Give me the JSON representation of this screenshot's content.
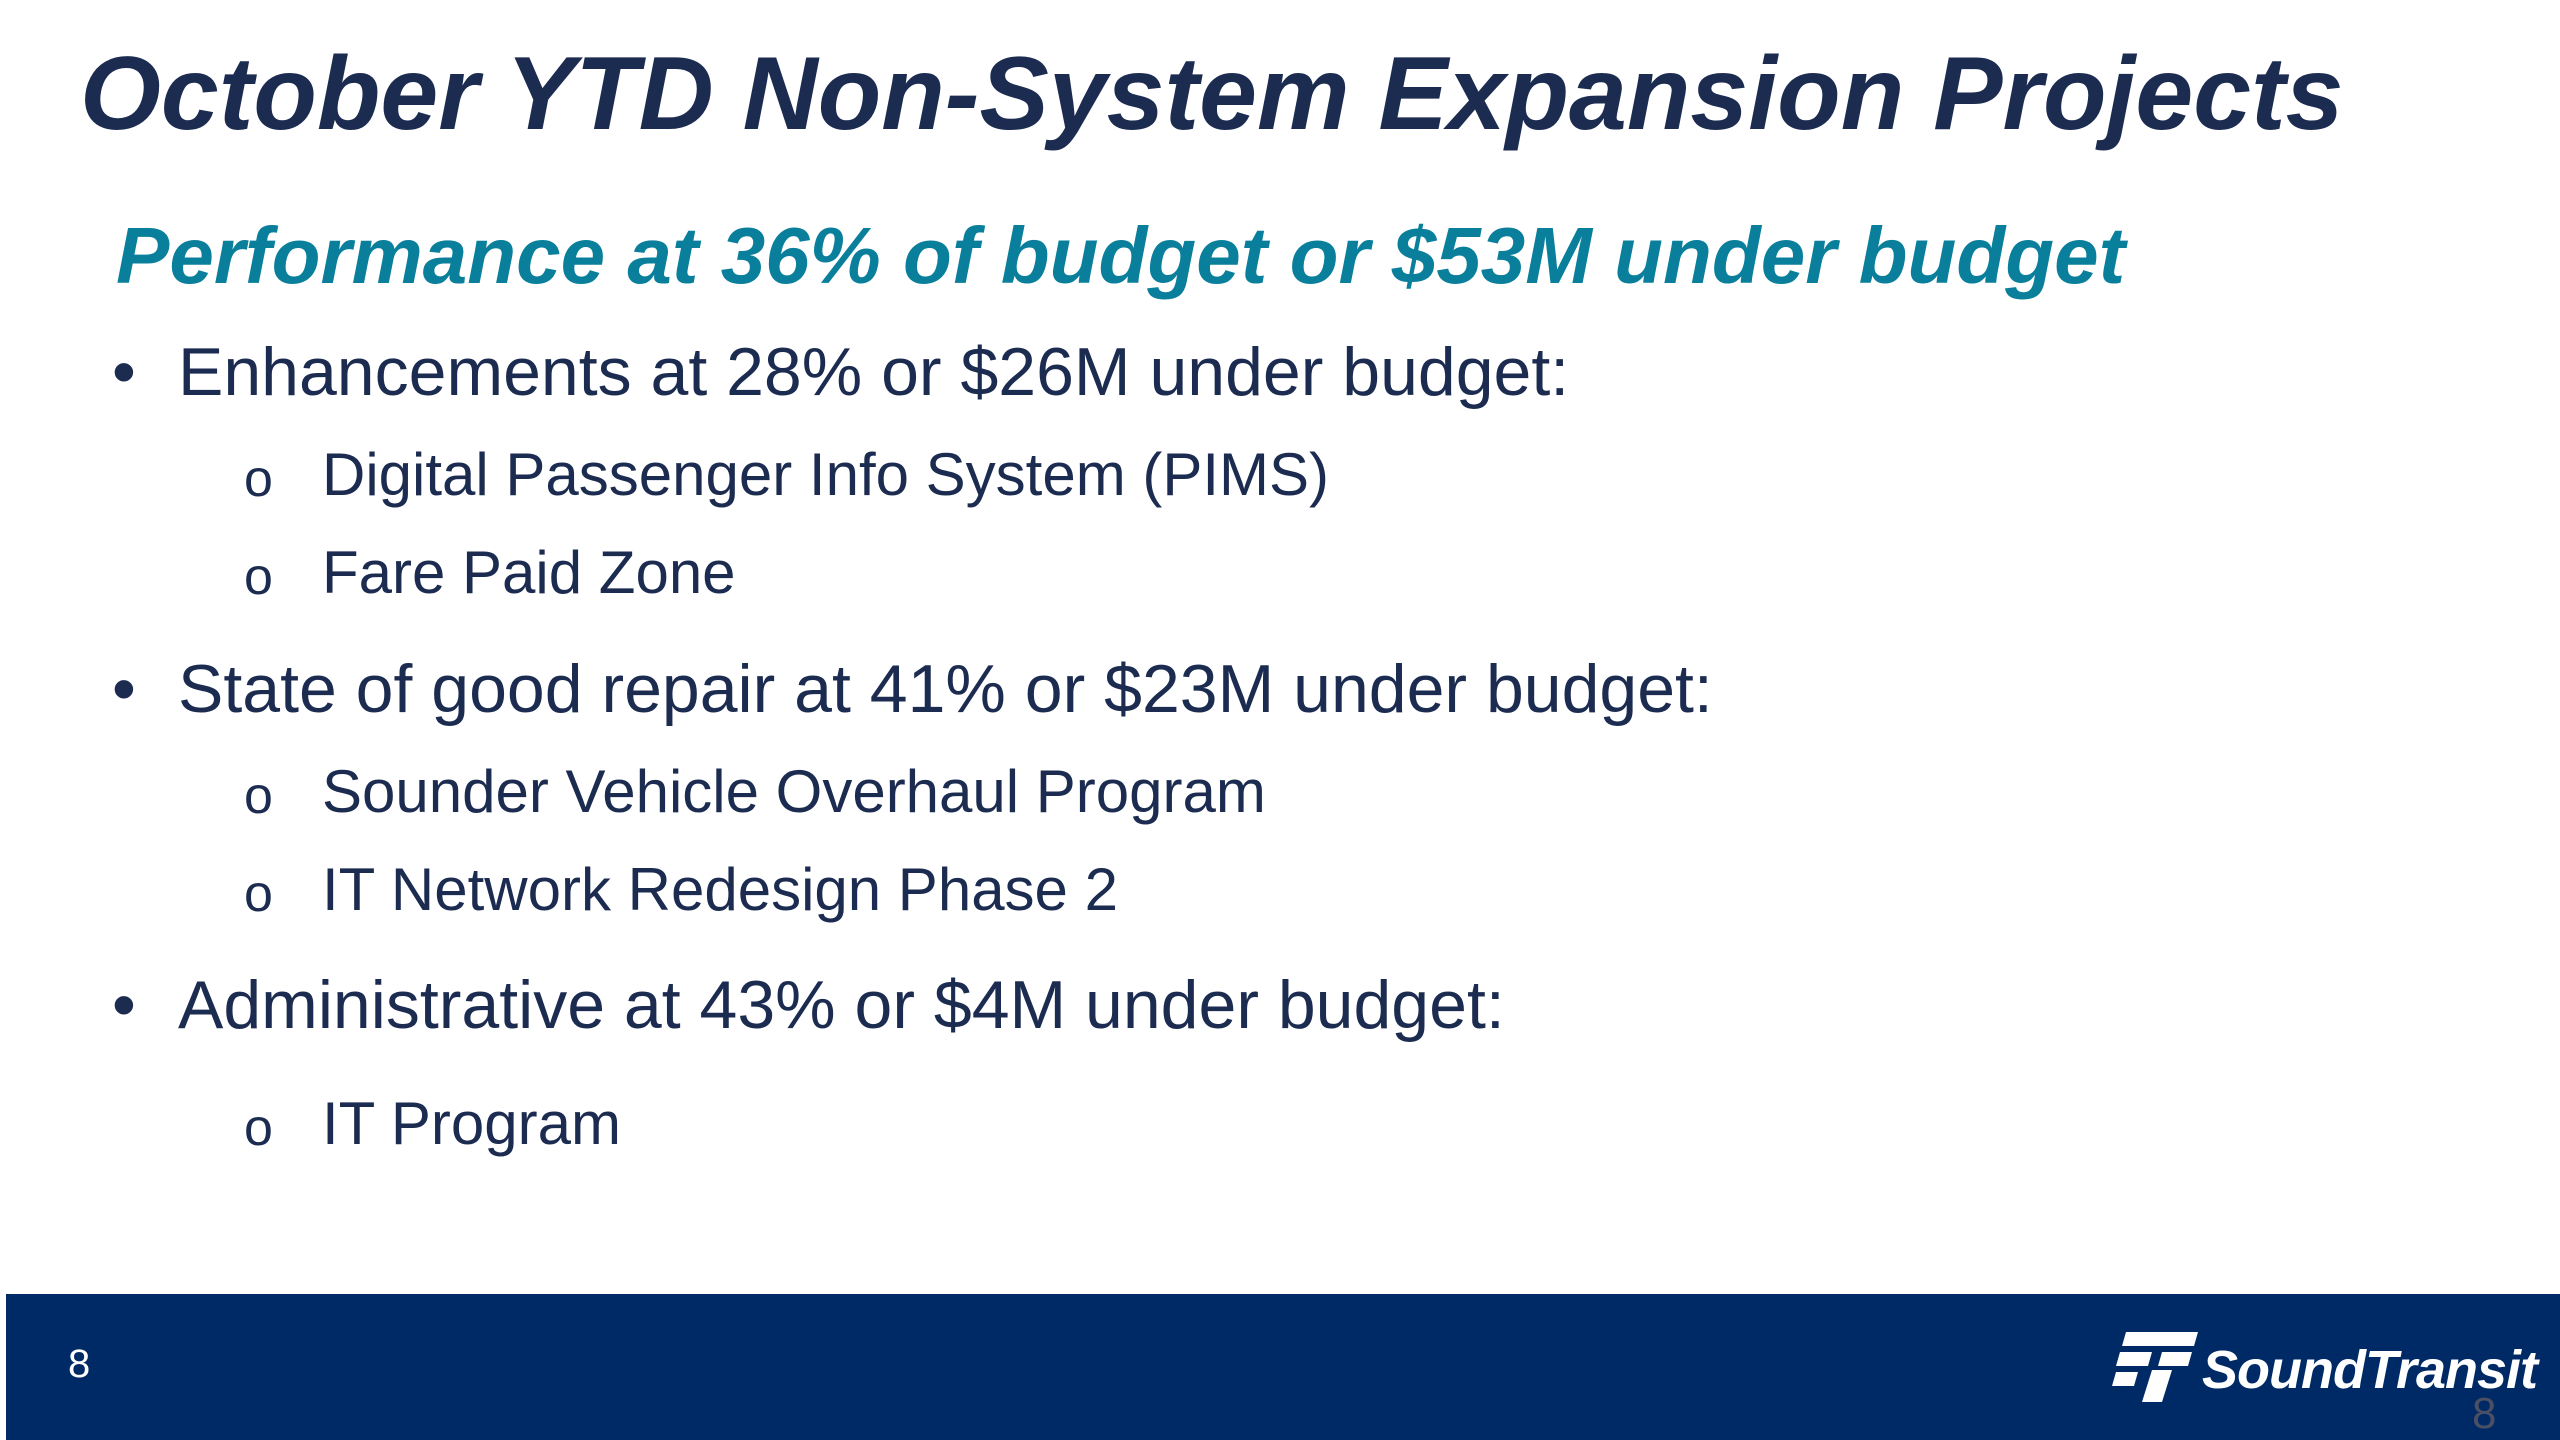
{
  "slide": {
    "title": "October YTD Non-System Expansion Projects",
    "subtitle": "Performance at 36% of budget or $53M under budget",
    "bullet_marker": "•",
    "sub_bullet_marker": "o",
    "sections": [
      {
        "label": "Enhancements at 28% or $26M under budget:",
        "items": [
          "Digital Passenger Info System (PIMS)",
          "Fare Paid Zone"
        ]
      },
      {
        "label": "State of good repair at 41% or $23M under budget:",
        "items": [
          "Sounder Vehicle Overhaul Program",
          "IT Network Redesign Phase 2"
        ]
      },
      {
        "label": "Administrative at 43% or $4M under budget:",
        "items": [
          "IT Program"
        ]
      }
    ]
  },
  "footer": {
    "page_number": "8",
    "logo_text": "SoundTransit",
    "watermark": "8",
    "background_color": "#002a66"
  },
  "colors": {
    "title": "#1c2b50",
    "subtitle": "#0a7f9b",
    "body_text": "#1c2b50"
  }
}
